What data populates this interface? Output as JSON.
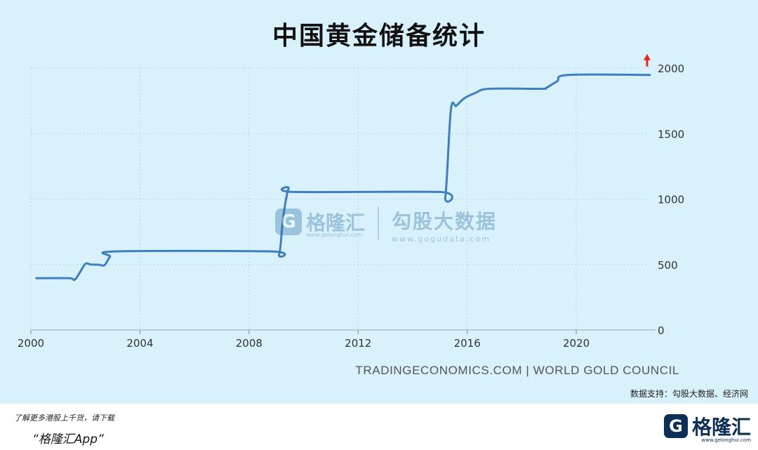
{
  "page": {
    "title": "中国黄金储备统计",
    "source": "TRADINGECONOMICS.COM | WORLD GOLD COUNCIL",
    "data_support": "数据支持：勾股大数据、经济网"
  },
  "watermark": {
    "left_logo_glyph": "G",
    "left_name": "格隆汇",
    "left_url": "www.gelonghui.com",
    "right_name": "勾股大数据",
    "right_url": "www.gogudata.com"
  },
  "footer": {
    "promo_line1": "了解更多港股上千货，请下载",
    "promo_line2": "“格隆汇App”",
    "brand_logo_glyph": "G",
    "brand_name": "格隆汇",
    "brand_url": "www.gelonghui.com"
  },
  "colors": {
    "background": "#d9f1fb",
    "line": "#3f7fbf",
    "arrow": "#e0281c",
    "grid": "#b9d6e2"
  },
  "chart_data": {
    "type": "line",
    "title": "中国黄金储备统计",
    "xlabel": "",
    "ylabel": "",
    "xlim": [
      2000,
      2022.7
    ],
    "ylim": [
      0,
      2000
    ],
    "x_ticks": [
      2000,
      2004,
      2008,
      2012,
      2016,
      2020
    ],
    "y_ticks": [
      0,
      500,
      1000,
      1500,
      2000
    ],
    "y_axis_position": "right",
    "grid": true,
    "series": [
      {
        "name": "",
        "x": [
          2000.2,
          2001.4,
          2001.6,
          2001.8,
          2002.0,
          2002.2,
          2002.5,
          2002.7,
          2002.9,
          2003.1,
          2008.8,
          2009.1,
          2009.25,
          2009.45,
          2009.65,
          2015.0,
          2015.2,
          2015.4,
          2015.6,
          2015.9,
          2016.3,
          2016.8,
          2018.7,
          2018.9,
          2019.3,
          2019.7,
          2022.7
        ],
        "values": [
          395,
          395,
          383,
          440,
          505,
          500,
          498,
          495,
          560,
          600,
          600,
          575,
          860,
          1080,
          1054,
          1054,
          1020,
          1680,
          1712,
          1770,
          1810,
          1842,
          1842,
          1850,
          1900,
          1948,
          1948
        ]
      }
    ],
    "annotations": [
      {
        "type": "up-arrow",
        "x": 2022.7,
        "y": 1948
      }
    ]
  }
}
